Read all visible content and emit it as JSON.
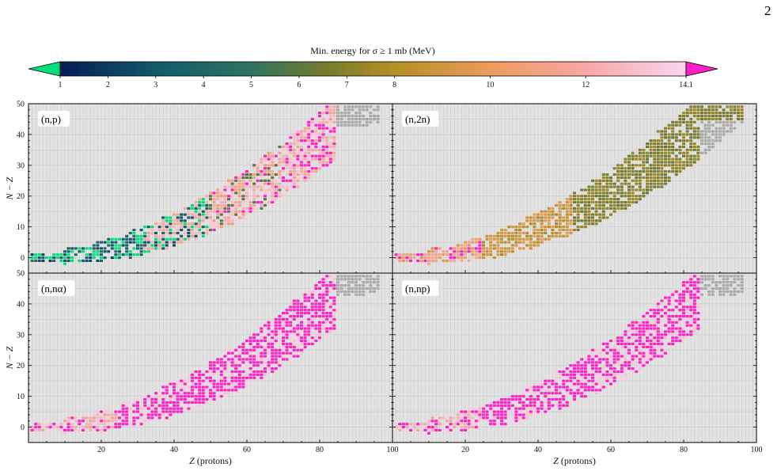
{
  "page": {
    "number": "2"
  },
  "colorbar": {
    "title": "Min. energy for σ ≥ 1 mb (MeV)",
    "ticks": [
      "1",
      "2",
      "3",
      "4",
      "5",
      "6",
      "7",
      "8",
      "10",
      "12",
      "14.1"
    ],
    "tick_values": [
      1,
      2,
      3,
      4,
      5,
      6,
      7,
      8,
      10,
      12,
      14.1
    ],
    "range": [
      1,
      14.1
    ],
    "under_color": "#00e07a",
    "over_color": "#ff1fc4",
    "colors": {
      "stops": [
        {
          "value": 1,
          "color": "#061c55"
        },
        {
          "value": 3,
          "color": "#115a6b"
        },
        {
          "value": 5,
          "color": "#2f745f"
        },
        {
          "value": 6.5,
          "color": "#717a2c"
        },
        {
          "value": 8,
          "color": "#b58f24"
        },
        {
          "value": 10,
          "color": "#ee9b5c"
        },
        {
          "value": 12,
          "color": "#f8a6a4"
        },
        {
          "value": 14.1,
          "color": "#f9d6f0"
        }
      ]
    }
  },
  "axes": {
    "xlabel_var": "Z",
    "xlabel_unit": " (protons)",
    "ylabel": "N − Z",
    "xticks": [
      "20",
      "40",
      "60",
      "80",
      "100"
    ],
    "yticks": [
      "0",
      "10",
      "20",
      "30",
      "40",
      "50"
    ]
  },
  "colors": {
    "panel_bg": "#e3e3e3",
    "grid": "#c8c8c8",
    "unstable_marker": "#a9a9a9"
  },
  "chart_data": [
    {
      "type": "heatmap",
      "panel": "(n,p)",
      "xlabel": "",
      "ylabel": "N − Z",
      "xlim": [
        0,
        100
      ],
      "ylim": [
        -5,
        50
      ],
      "grid": true,
      "trend": "mixed: green/blue at low Z, orange-pink at mid Z, magenta at high Z"
    },
    {
      "type": "heatmap",
      "panel": "(n,2n)",
      "xlabel": "",
      "ylabel": "",
      "xlim": [
        0,
        100
      ],
      "ylim": [
        -5,
        50
      ],
      "grid": true,
      "trend": "mostly orange at low Z, olive at high Z"
    },
    {
      "type": "heatmap",
      "panel": "(n,nα)",
      "xlabel": "Z (protons)",
      "ylabel": "N − Z",
      "xlim": [
        0,
        100
      ],
      "ylim": [
        -5,
        50
      ],
      "grid": true,
      "trend": "mostly magenta (above 14.1 MeV), some pink/orange"
    },
    {
      "type": "heatmap",
      "panel": "(n,np)",
      "xlabel": "Z (protons)",
      "ylabel": "",
      "xlim": [
        0,
        100
      ],
      "ylim": [
        -5,
        50
      ],
      "grid": true,
      "trend": "mostly magenta (above 14.1 MeV), some pink/orange"
    }
  ],
  "panels": [
    {
      "label": "(n,p)"
    },
    {
      "label": "(n,2n)"
    },
    {
      "label": "(n,nα)"
    },
    {
      "label": "(n,np)"
    }
  ]
}
